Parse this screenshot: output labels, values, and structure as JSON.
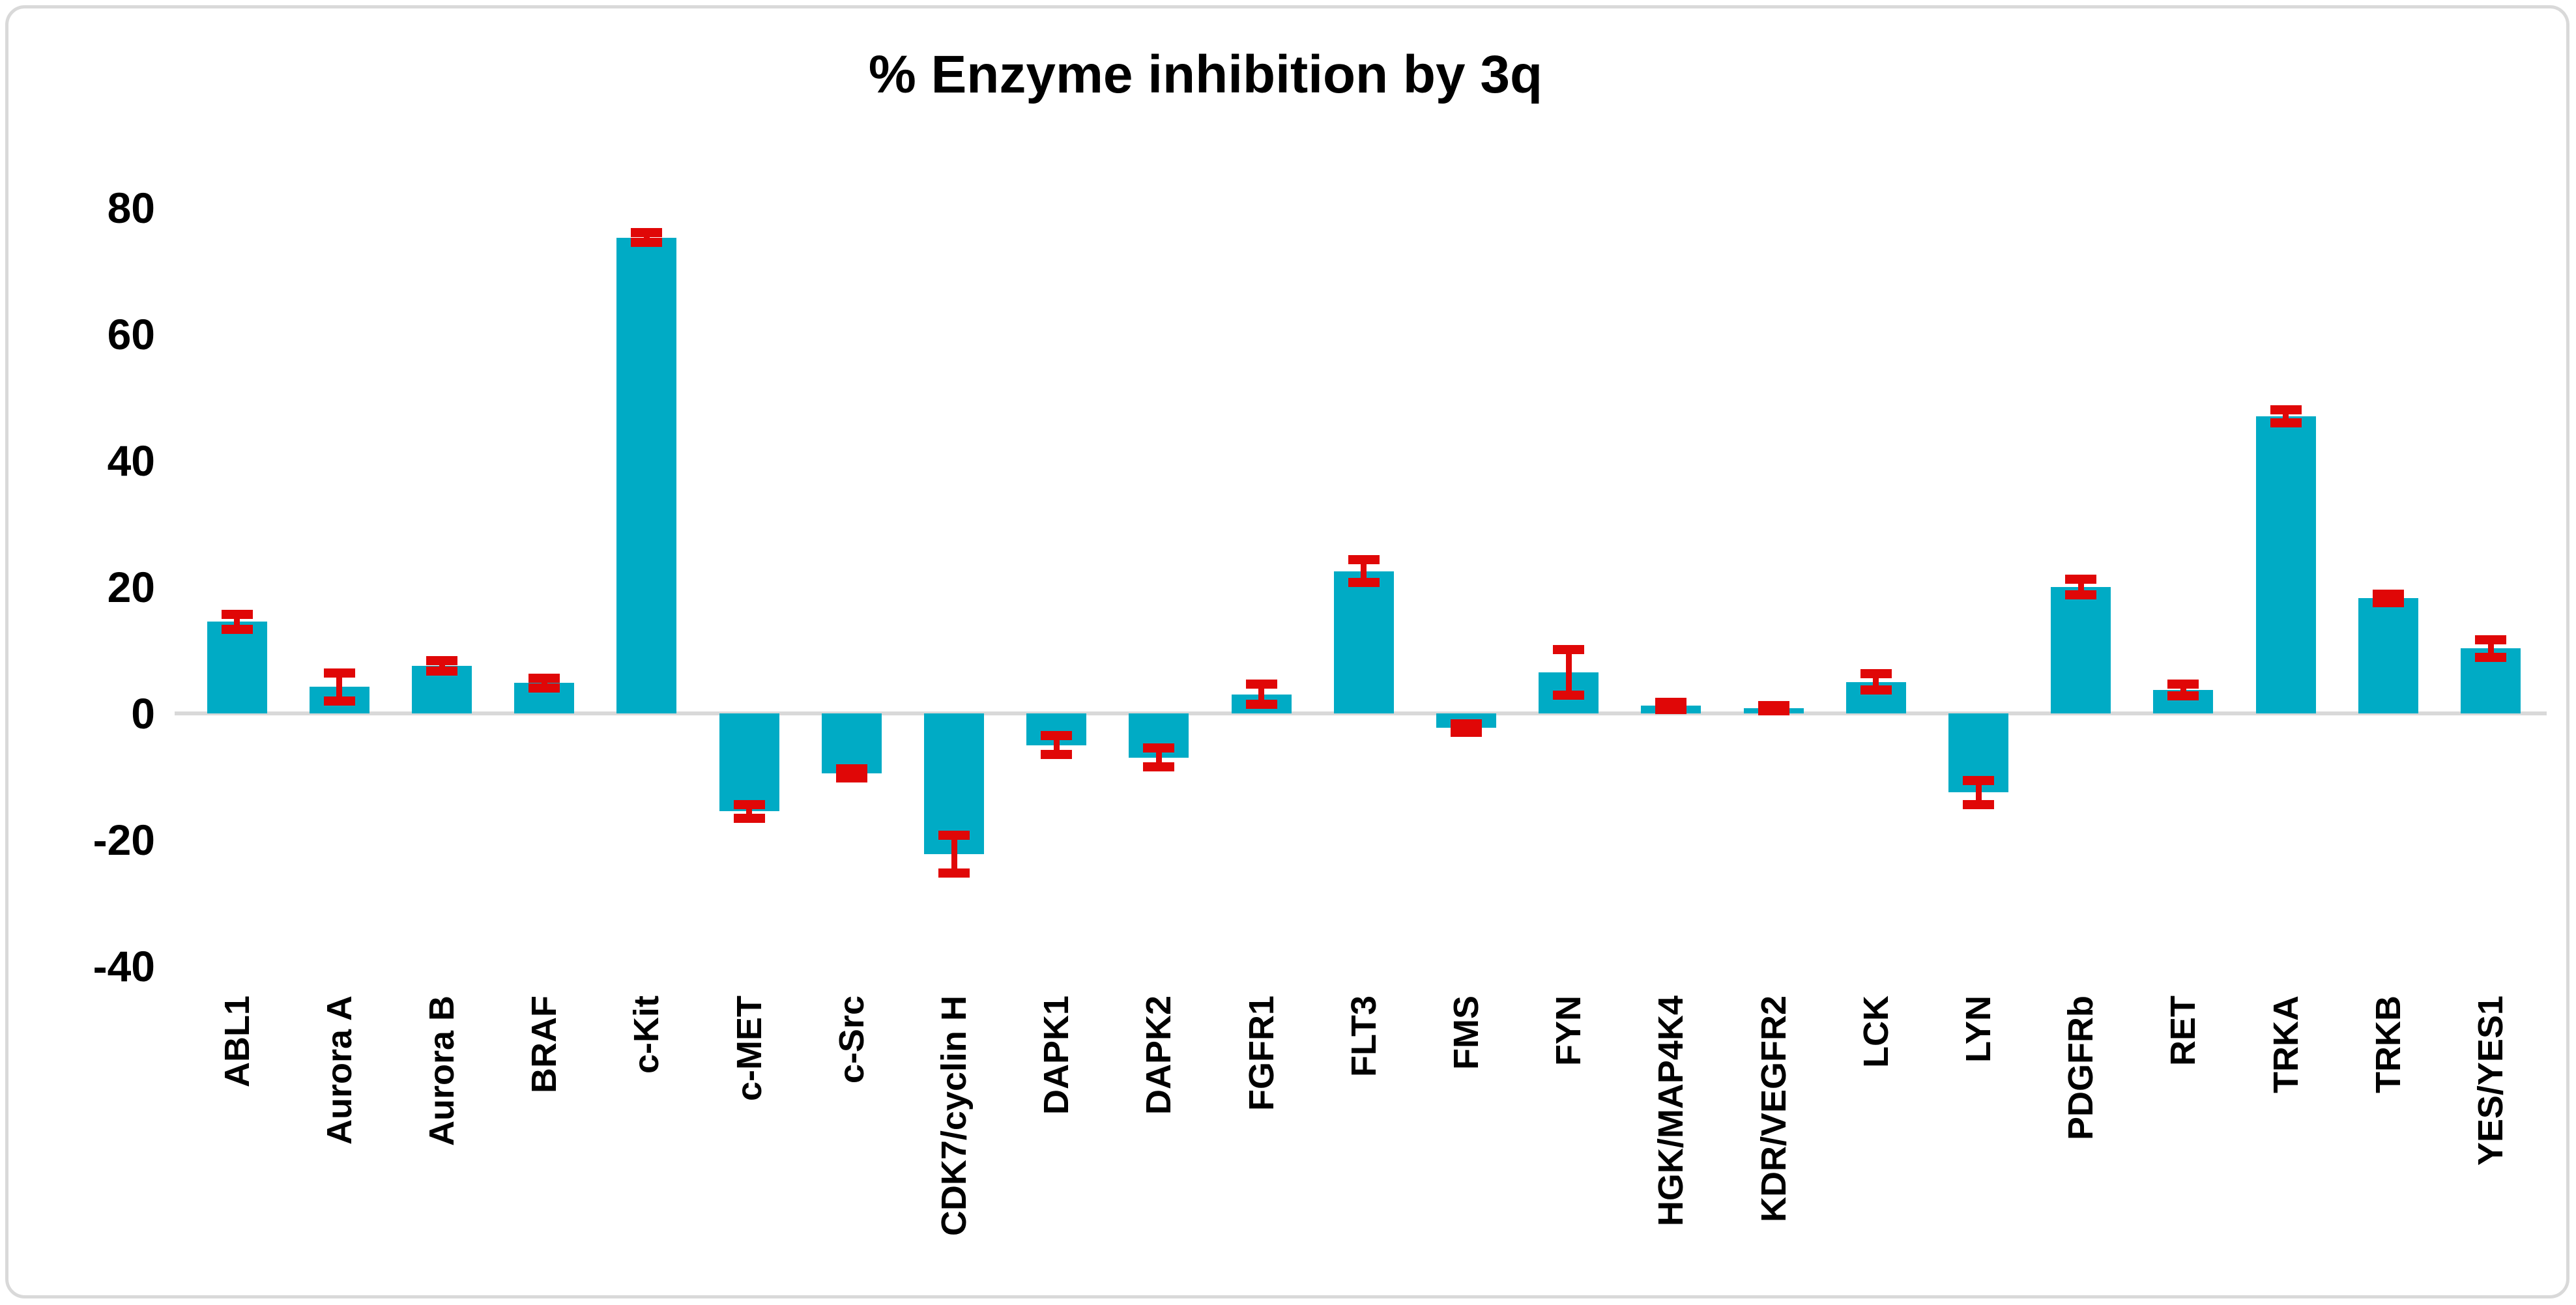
{
  "chart_data": {
    "type": "bar",
    "title": "% Enzyme inhibition by 3q",
    "categories": [
      "ABL1",
      "Aurora A",
      "Aurora B",
      "BRAF",
      "c-Kit",
      "c-MET",
      "c-Src",
      "CDK7/cyclin H",
      "DAPK1",
      "DAPK2",
      "FGFR1",
      "FLT3",
      "FMS",
      "FYN",
      "HGK/MAP4K4",
      "KDR/VEGFR2",
      "LCK",
      "LYN",
      "PDGFRb",
      "RET",
      "TRKA",
      "TRKB",
      "YES/YES1"
    ],
    "values": [
      14.5,
      4.2,
      7.5,
      4.8,
      75.3,
      -15.5,
      -9.5,
      -22.3,
      -5.0,
      -7.0,
      3.0,
      22.5,
      -2.3,
      6.5,
      1.2,
      0.8,
      5.0,
      -12.5,
      20.0,
      3.7,
      47.0,
      18.2,
      10.3
    ],
    "errors": [
      1.2,
      2.2,
      0.8,
      0.8,
      0.8,
      1.1,
      0.7,
      3.0,
      1.5,
      1.5,
      1.6,
      1.8,
      0.7,
      3.6,
      0.6,
      0.4,
      1.3,
      1.9,
      1.2,
      0.9,
      1.0,
      0.7,
      1.4
    ],
    "yticks": [
      80,
      60,
      40,
      20,
      0,
      -20,
      -40
    ],
    "ylim": [
      -40,
      88
    ],
    "xlabel": "",
    "ylabel": "",
    "grid": false,
    "legend": "none",
    "error_bar_style": "both-caps",
    "bar_color": "#00ABC5",
    "error_color": "#E00707",
    "baseline_color": "#D9D9D9",
    "text_color": "#000000"
  }
}
